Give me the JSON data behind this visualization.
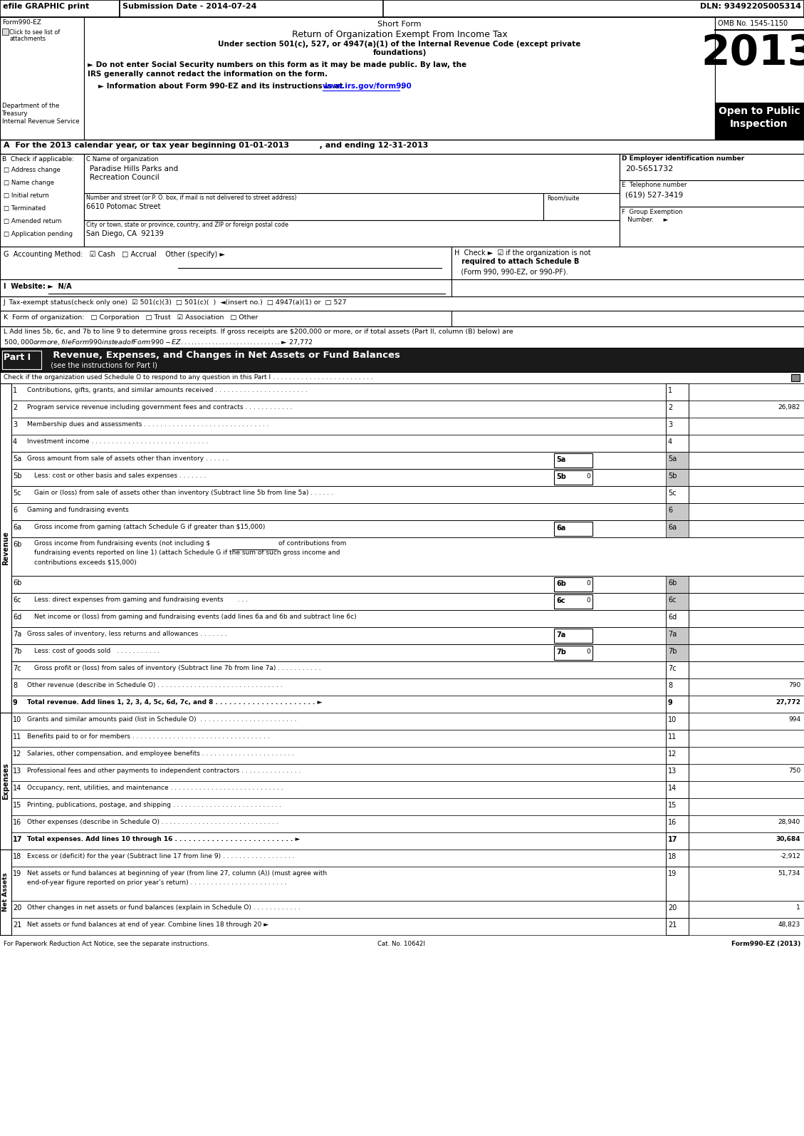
{
  "title_header": "efile GRAPHIC print",
  "submission_date": "Submission Date - 2014-07-24",
  "dln": "DLN: 93492205005314",
  "form_title": "Short Form",
  "form_subtitle": "Return of Organization Exempt From Income Tax",
  "omb": "OMB No. 1545-1150",
  "year": "2013",
  "form_label": "Form990-EZ",
  "click_attachments": "Click to see list of\nattachments",
  "dept": "Department of the\nTreasury\nInternal Revenue Service",
  "section_a": "A  For the 2013 calendar year, or tax year beginning 01-01-2013           , and ending 12-31-2013",
  "check_items": [
    "Address change",
    "Name change",
    "Initial return",
    "Terminated",
    "Amended return",
    "Application pending"
  ],
  "org_name": "Paradise Hills Parks and\nRecreation Council",
  "ein": "20-5651732",
  "phone": "(619) 527-3419",
  "street": "6610 Potomac Street",
  "city": "San Diego, CA  92139",
  "section_g": "G  Accounting Method:   ☑ Cash   □ Accrual    Other (specify) ►",
  "section_h_line1": "H  Check ►  ☑ if the organization is not",
  "section_h_line2": "   required to attach Schedule B",
  "section_h_line3": "   (Form 990, 990-EZ, or 990-PF).",
  "section_i": "I  Website: ►  N/A",
  "section_j": "J  Tax-exempt status(check only one)  ☑ 501(c)(3)  □ 501(c)(  )  ◄(insert no.)  □ 4947(a)(1) or  □ 527",
  "section_k": "K  Form of organization:   □ Corporation   □ Trust   ☑ Association   □ Other",
  "section_l1": "L Add lines 5b, 6c, and 7b to line 9 to determine gross receipts. If gross receipts are $200,000 or more, or if total assets (Part II, column (B) below) are",
  "section_l2": "$500,000 or more, file Form 990 instead of Form 990-EZ . . . . . . . . . . . . . . . . . . . . . . . . . . . . . ► $ 27,772",
  "part1_check": "Check if the organization used Schedule O to respond to any question in this Part I . . . . . . . . . . . . . . . . . . . . . . . . .",
  "revenue_label": "Revenue",
  "expenses_label": "Expenses",
  "net_assets_label": "Net Assets",
  "gray": "#c8c8c8",
  "lines": [
    {
      "num": "1",
      "desc": "Contributions, gifts, grants, and similar amounts received . . . . . . . . . . . . . . . . . . . . . . .",
      "value": "",
      "indent": 0,
      "bold": false,
      "sub": null,
      "gray_right": false
    },
    {
      "num": "2",
      "desc": "Program service revenue including government fees and contracts . . . . . . . . . . . .",
      "value": "26,982",
      "indent": 0,
      "bold": false,
      "sub": null,
      "gray_right": false
    },
    {
      "num": "3",
      "desc": "Membership dues and assessments . . . . . . . . . . . . . . . . . . . . . . . . . . . . . . .",
      "value": "",
      "indent": 0,
      "bold": false,
      "sub": null,
      "gray_right": false
    },
    {
      "num": "4",
      "desc": "Investment income . . . . . . . . . . . . . . . . . . . . . . . . . . . . .",
      "value": "",
      "indent": 0,
      "bold": false,
      "sub": null,
      "gray_right": false
    },
    {
      "num": "5a",
      "desc": "Gross amount from sale of assets other than inventory . . . . . .",
      "value": "",
      "indent": 0,
      "bold": false,
      "sub": "5a",
      "gray_right": true
    },
    {
      "num": "5b",
      "desc": "Less: cost or other basis and sales expenses . . . . . . .",
      "value": "0",
      "indent": 10,
      "bold": false,
      "sub": "5b",
      "gray_right": true
    },
    {
      "num": "5c",
      "desc": "Gain or (loss) from sale of assets other than inventory (Subtract line 5b from line 5a) . . . . . .",
      "value": "",
      "indent": 10,
      "bold": false,
      "sub": null,
      "gray_right": false
    },
    {
      "num": "6",
      "desc": "Gaming and fundraising events",
      "value": "",
      "indent": 0,
      "bold": false,
      "sub": null,
      "gray_right": true
    },
    {
      "num": "6a",
      "desc": "Gross income from gaming (attach Schedule G if greater than $15,000)",
      "value": "",
      "indent": 10,
      "bold": false,
      "sub": "6a",
      "gray_right": true
    },
    {
      "num": "6b_txt",
      "desc": "Gross income from fundraising events (not including $",
      "value": "",
      "indent": 10,
      "bold": false,
      "sub": null,
      "gray_right": false,
      "multiline": true
    },
    {
      "num": "6b",
      "desc": "",
      "value": "0",
      "indent": 0,
      "bold": false,
      "sub": "6b",
      "gray_right": true
    },
    {
      "num": "6c",
      "desc": "Less: direct expenses from gaming and fundraising events       . . .",
      "value": "0",
      "indent": 10,
      "bold": false,
      "sub": "6c",
      "gray_right": true
    },
    {
      "num": "6d",
      "desc": "Net income or (loss) from gaming and fundraising events (add lines 6a and 6b and subtract line 6c)",
      "value": "",
      "indent": 10,
      "bold": false,
      "sub": null,
      "gray_right": false
    },
    {
      "num": "7a",
      "desc": "Gross sales of inventory, less returns and allowances . . . . . . .",
      "value": "",
      "indent": 0,
      "bold": false,
      "sub": "7a",
      "gray_right": true
    },
    {
      "num": "7b",
      "desc": "Less: cost of goods sold   . . . . . . . . . . .",
      "value": "0",
      "indent": 10,
      "bold": false,
      "sub": "7b",
      "gray_right": true
    },
    {
      "num": "7c",
      "desc": "Gross profit or (loss) from sales of inventory (Subtract line 7b from line 7a) . . . . . . . . . . .",
      "value": "",
      "indent": 10,
      "bold": false,
      "sub": null,
      "gray_right": false
    },
    {
      "num": "8",
      "desc": "Other revenue (describe in Schedule O) . . . . . . . . . . . . . . . . . . . . . . . . . . . . . . .",
      "value": "790",
      "indent": 0,
      "bold": false,
      "sub": null,
      "gray_right": false
    },
    {
      "num": "9",
      "desc": "Total revenue. Add lines 1, 2, 3, 4, 5c, 6d, 7c, and 8 . . . . . . . . . . . . . . . . . . . . . . ►",
      "value": "27,772",
      "indent": 0,
      "bold": true,
      "sub": null,
      "gray_right": false
    },
    {
      "num": "10",
      "desc": "Grants and similar amounts paid (list in Schedule O)  . . . . . . . . . . . . . . . . . . . . . . . .",
      "value": "994",
      "indent": 0,
      "bold": false,
      "sub": null,
      "gray_right": false
    },
    {
      "num": "11",
      "desc": "Benefits paid to or for members . . . . . . . . . . . . . . . . . . . . . . . . . . . . . . . . . .",
      "value": "",
      "indent": 0,
      "bold": false,
      "sub": null,
      "gray_right": false
    },
    {
      "num": "12",
      "desc": "Salaries, other compensation, and employee benefits . . . . . . . . . . . . . . . . . . . . . . .",
      "value": "",
      "indent": 0,
      "bold": false,
      "sub": null,
      "gray_right": false
    },
    {
      "num": "13",
      "desc": "Professional fees and other payments to independent contractors . . . . . . . . . . . . . . .",
      "value": "750",
      "indent": 0,
      "bold": false,
      "sub": null,
      "gray_right": false
    },
    {
      "num": "14",
      "desc": "Occupancy, rent, utilities, and maintenance . . . . . . . . . . . . . . . . . . . . . . . . . . . .",
      "value": "",
      "indent": 0,
      "bold": false,
      "sub": null,
      "gray_right": false
    },
    {
      "num": "15",
      "desc": "Printing, publications, postage, and shipping . . . . . . . . . . . . . . . . . . . . . . . . . . .",
      "value": "",
      "indent": 0,
      "bold": false,
      "sub": null,
      "gray_right": false
    },
    {
      "num": "16",
      "desc": "Other expenses (describe in Schedule O) . . . . . . . . . . . . . . . . . . . . . . . . . . . . .",
      "value": "28,940",
      "indent": 0,
      "bold": false,
      "sub": null,
      "gray_right": false
    },
    {
      "num": "17",
      "desc": "Total expenses. Add lines 10 through 16 . . . . . . . . . . . . . . . . . . . . . . . . . . ►",
      "value": "30,684",
      "indent": 0,
      "bold": true,
      "sub": null,
      "gray_right": false
    },
    {
      "num": "18",
      "desc": "Excess or (deficit) for the year (Subtract line 17 from line 9) . . . . . . . . . . . . . . . . . .",
      "value": "-2,912",
      "indent": 0,
      "bold": false,
      "sub": null,
      "gray_right": false
    },
    {
      "num": "19",
      "desc": "Net assets or fund balances at beginning of year (from line 27, column (A)) (must agree with\nend-of-year figure reported on prior year’s return) . . . . . . . . . . . . . . . . . . . . . . . .",
      "value": "51,734",
      "indent": 0,
      "bold": false,
      "sub": null,
      "gray_right": false
    },
    {
      "num": "20",
      "desc": "Other changes in net assets or fund balances (explain in Schedule O) . . . . . . . . . . . .",
      "value": "1",
      "indent": 0,
      "bold": false,
      "sub": null,
      "gray_right": false
    },
    {
      "num": "21",
      "desc": "Net assets or fund balances at end of year. Combine lines 18 through 20 ►",
      "value": "48,823",
      "indent": 0,
      "bold": false,
      "sub": null,
      "gray_right": false
    }
  ],
  "footer_left": "For Paperwork Reduction Act Notice, see the separate instructions.",
  "footer_cat": "Cat. No. 10642I",
  "footer_right": "Form990-EZ (2013)"
}
